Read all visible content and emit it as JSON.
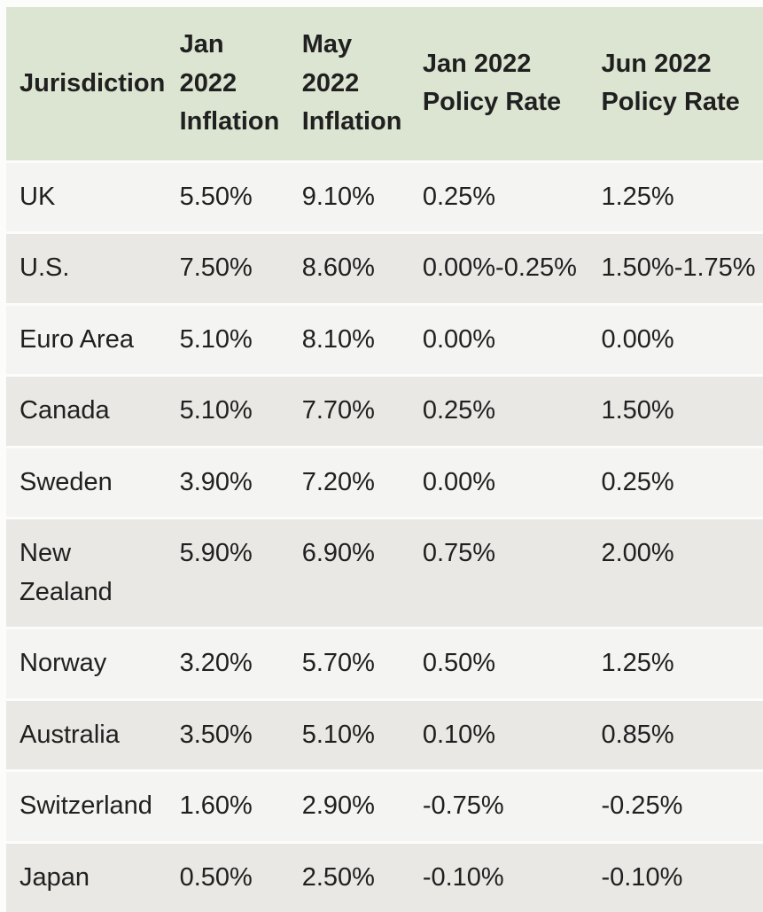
{
  "chart_data": {
    "type": "table",
    "title": "",
    "columns": [
      "Jurisdiction",
      "Jan 2022 Inflation",
      "May 2022 Inflation",
      "Jan 2022 Policy Rate",
      "Jun 2022 Policy Rate"
    ],
    "column_keys": [
      "jurisdiction",
      "jan-2022-inflation",
      "may-2022-inflation",
      "jan-2022-policy-rate",
      "jun-2022-policy-rate"
    ],
    "rows": [
      [
        "UK",
        "5.50%",
        "9.10%",
        "0.25%",
        "1.25%"
      ],
      [
        "U.S.",
        "7.50%",
        "8.60%",
        "0.00%-0.25%",
        "1.50%-1.75%"
      ],
      [
        "Euro Area",
        "5.10%",
        "8.10%",
        "0.00%",
        "0.00%"
      ],
      [
        "Canada",
        "5.10%",
        "7.70%",
        "0.25%",
        "1.50%"
      ],
      [
        "Sweden",
        "3.90%",
        "7.20%",
        "0.00%",
        "0.25%"
      ],
      [
        "New Zealand",
        "5.90%",
        "6.90%",
        "0.75%",
        "2.00%"
      ],
      [
        "Norway",
        "3.20%",
        "5.70%",
        "0.50%",
        "1.25%"
      ],
      [
        "Australia",
        "3.50%",
        "5.10%",
        "0.10%",
        "0.85%"
      ],
      [
        "Switzerland",
        "1.60%",
        "2.90%",
        "-0.75%",
        "-0.25%"
      ],
      [
        "Japan",
        "0.50%",
        "2.50%",
        "-0.10%",
        "-0.10%"
      ]
    ]
  },
  "colors": {
    "header_background": "#dce5d1",
    "row_light": "#f4f4f2",
    "row_dark": "#e9e8e5",
    "page_background": "#fcfcfa",
    "text": "#202020"
  }
}
